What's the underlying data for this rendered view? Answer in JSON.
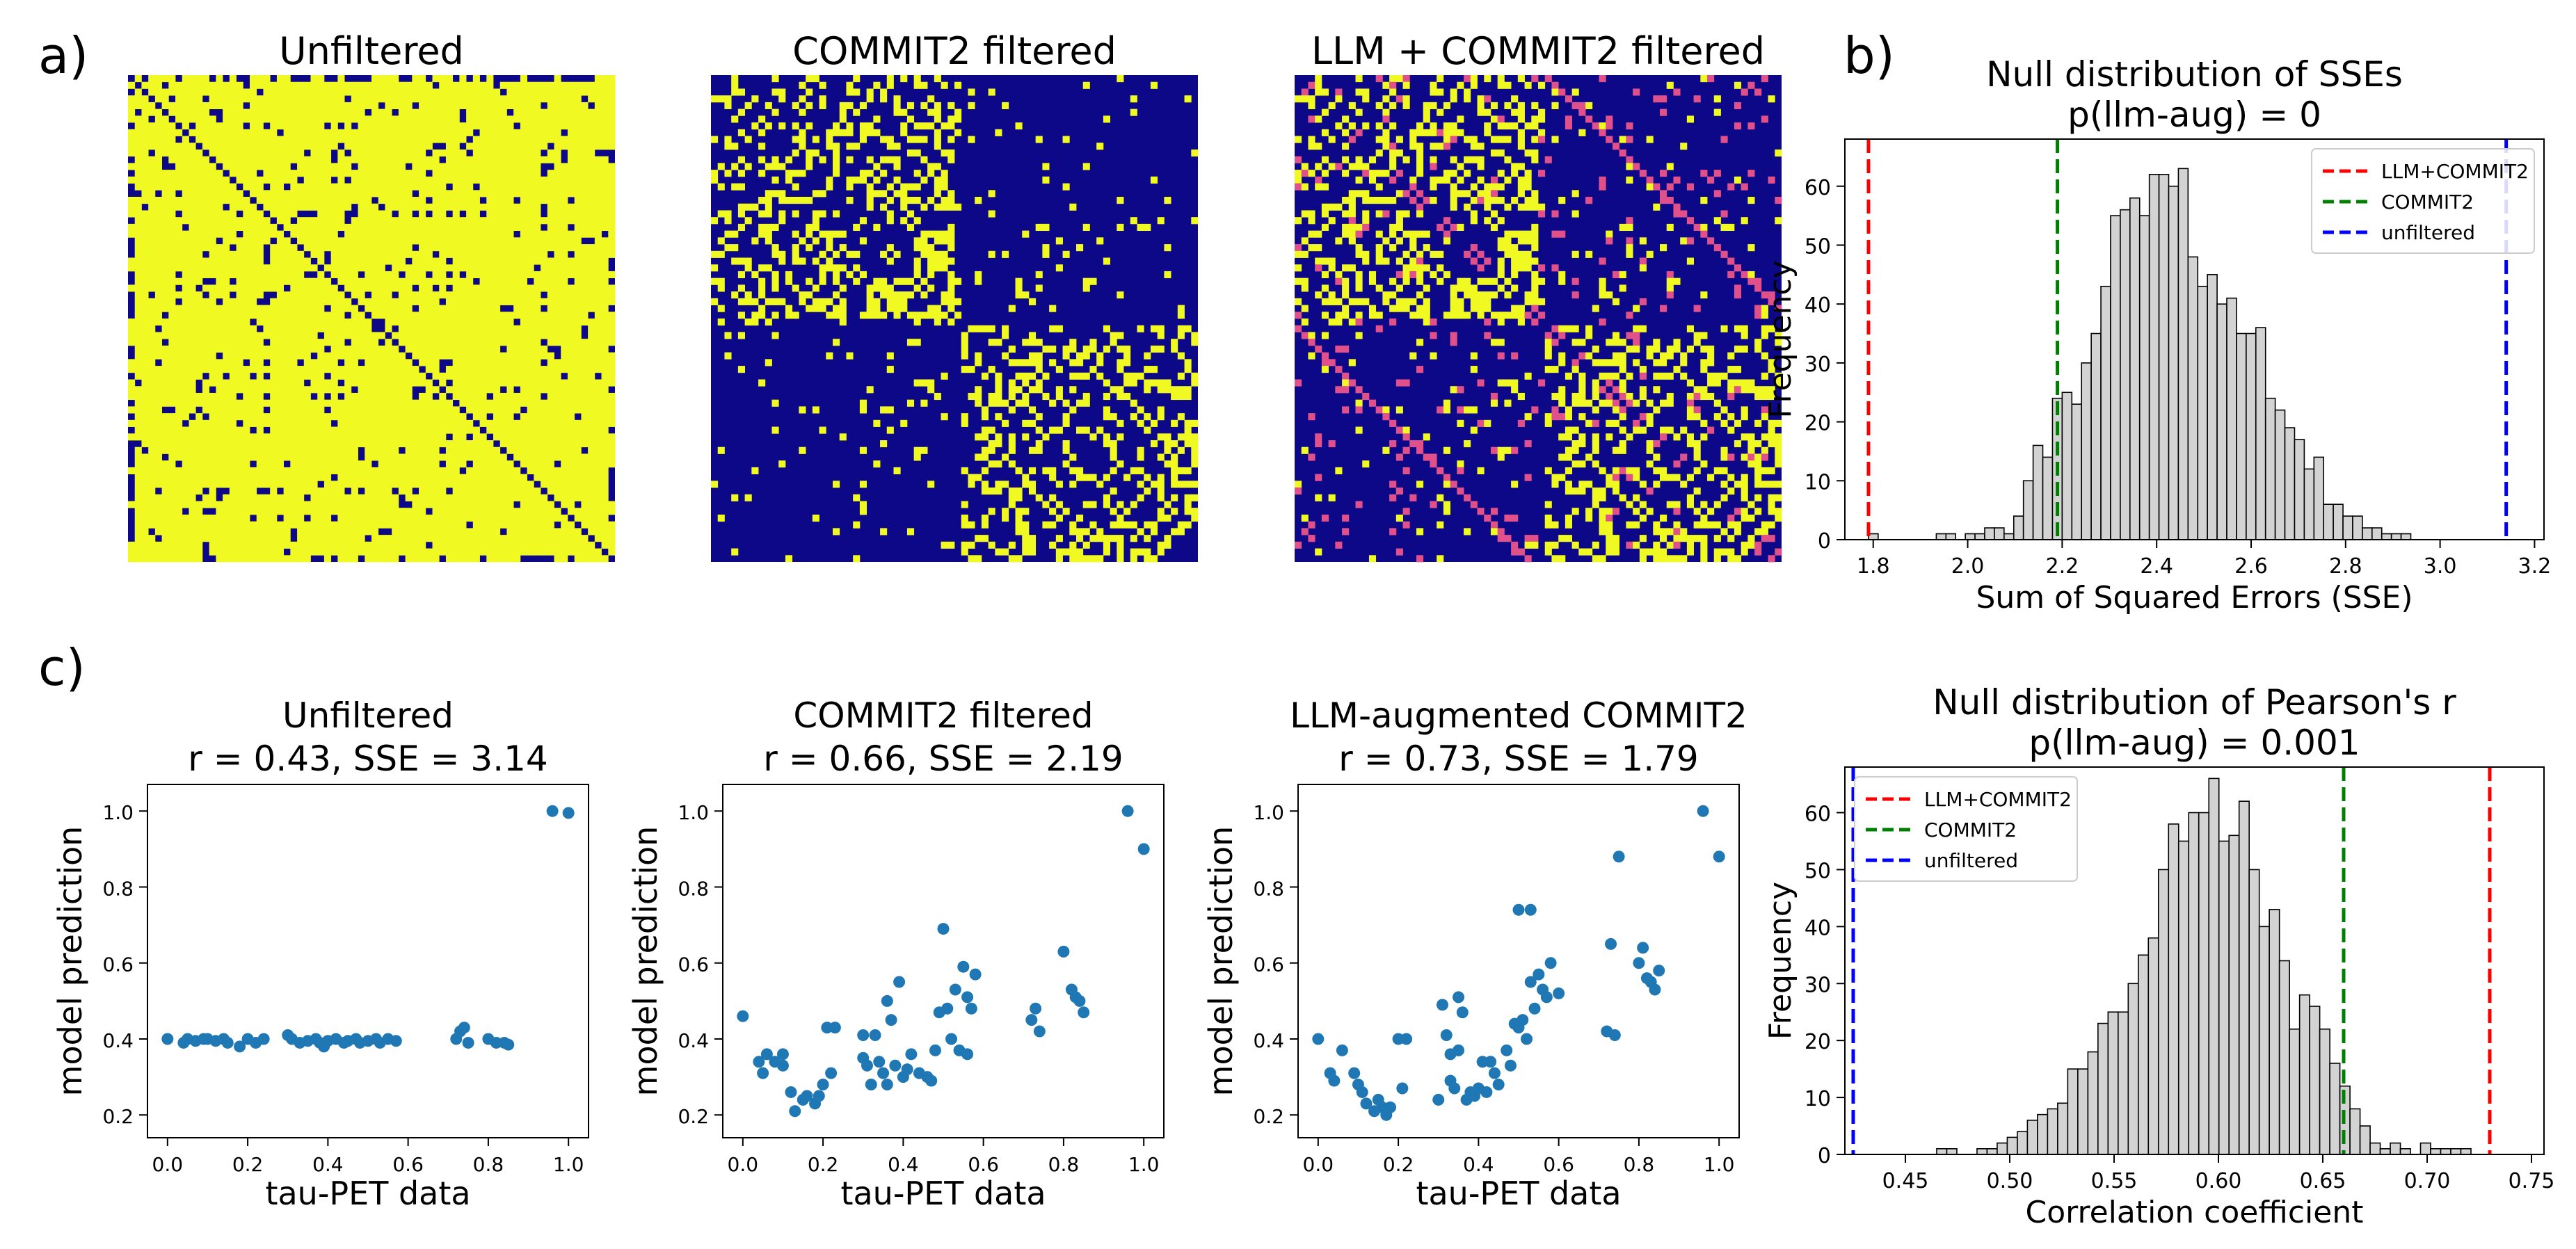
{
  "panel_labels": {
    "a": "a)",
    "b": "b)",
    "c": "c)"
  },
  "colors": {
    "navy": "#0d0887",
    "yellow": "#f0f921",
    "pink": "#e0508a",
    "scatter": "#1f77b4",
    "hist_fill": "#d3d3d3",
    "red": "#ff0000",
    "green": "#008000",
    "blue": "#0000ff"
  },
  "matrices": [
    {
      "title": "Unfiltered",
      "kind": "dense"
    },
    {
      "title": "COMMIT2 filtered",
      "kind": "sparse"
    },
    {
      "title": "LLM + COMMIT2 filtered",
      "kind": "sparse_llm"
    }
  ],
  "chart_data": [
    {
      "type": "histogram",
      "title_lines": [
        "Null distribution of SSEs",
        "p(llm-aug) = 0"
      ],
      "xlabel": "Sum of Squared Errors (SSE)",
      "ylabel": "Frequency",
      "xlim": [
        1.74,
        3.22
      ],
      "ylim": [
        0,
        68
      ],
      "xticks": [
        1.8,
        2.0,
        2.2,
        2.4,
        2.6,
        2.8,
        3.0,
        3.2
      ],
      "xtick_labels": [
        "1.8",
        "2.0",
        "2.2",
        "2.4",
        "2.6",
        "2.8",
        "3.0",
        "3.2"
      ],
      "yticks": [
        0,
        10,
        20,
        30,
        40,
        50,
        60
      ],
      "ytick_labels": [
        "0",
        "10",
        "20",
        "30",
        "40",
        "50",
        "60"
      ],
      "bin_start": 1.79,
      "bin_width": 0.0205,
      "counts": [
        1,
        0,
        0,
        0,
        0,
        0,
        0,
        1,
        1,
        0,
        1,
        1,
        2,
        2,
        1,
        4,
        10,
        16,
        14,
        24,
        25,
        23,
        30,
        35,
        43,
        55,
        56,
        58,
        55,
        62,
        62,
        60,
        63,
        48,
        43,
        45,
        40,
        41,
        35,
        35,
        36,
        24,
        22,
        19,
        17,
        12,
        14,
        6,
        6,
        4,
        4,
        2,
        2,
        1,
        1,
        1
      ],
      "vlines": [
        {
          "label": "LLM+COMMIT2",
          "x": 1.79,
          "color": "#ff0000"
        },
        {
          "label": "COMMIT2",
          "x": 2.19,
          "color": "#008000"
        },
        {
          "label": "unfiltered",
          "x": 3.14,
          "color": "#0000ff"
        }
      ],
      "legend": "top-right"
    },
    {
      "type": "histogram",
      "title_lines": [
        "Null distribution of Pearson's r",
        "p(llm-aug) = 0.001"
      ],
      "xlabel": "Correlation coefficient",
      "ylabel": "Frequency",
      "xlim": [
        0.421,
        0.756
      ],
      "ylim": [
        0,
        68
      ],
      "xticks": [
        0.45,
        0.5,
        0.55,
        0.6,
        0.65,
        0.7,
        0.75
      ],
      "xtick_labels": [
        "0.45",
        "0.50",
        "0.55",
        "0.60",
        "0.65",
        "0.70",
        "0.75"
      ],
      "yticks": [
        0,
        10,
        20,
        30,
        40,
        50,
        60
      ],
      "ytick_labels": [
        "0",
        "10",
        "20",
        "30",
        "40",
        "50",
        "60"
      ],
      "bin_start": 0.465,
      "bin_width": 0.00483,
      "counts": [
        1,
        1,
        0,
        0,
        1,
        1,
        2,
        3,
        4,
        6,
        7,
        8,
        9,
        15,
        15,
        18,
        23,
        25,
        25,
        30,
        35,
        38,
        50,
        58,
        55,
        60,
        60,
        66,
        55,
        56,
        62,
        50,
        40,
        43,
        34,
        22,
        28,
        26,
        22,
        16,
        12,
        8,
        5,
        2,
        1,
        2,
        1,
        0,
        2,
        1,
        1,
        1,
        1
      ],
      "vlines": [
        {
          "label": "LLM+COMMIT2",
          "x": 0.73,
          "color": "#ff0000"
        },
        {
          "label": "COMMIT2",
          "x": 0.66,
          "color": "#008000"
        },
        {
          "label": "unfiltered",
          "x": 0.425,
          "color": "#0000ff"
        }
      ],
      "legend": "top-left"
    },
    {
      "type": "scatter",
      "title_lines": [
        "Unfiltered",
        "r = 0.43, SSE = 3.14"
      ],
      "xlabel": "tau-PET data",
      "ylabel": "model prediction",
      "xlim": [
        -0.05,
        1.05
      ],
      "ylim": [
        0.14,
        1.07
      ],
      "xticks": [
        0.0,
        0.2,
        0.4,
        0.6,
        0.8,
        1.0
      ],
      "xtick_labels": [
        "0.0",
        "0.2",
        "0.4",
        "0.6",
        "0.8",
        "1.0"
      ],
      "yticks": [
        0.2,
        0.4,
        0.6,
        0.8,
        1.0
      ],
      "ytick_labels": [
        "0.2",
        "0.4",
        "0.6",
        "0.8",
        "1.0"
      ],
      "points": [
        [
          0.0,
          0.4
        ],
        [
          0.04,
          0.39
        ],
        [
          0.05,
          0.4
        ],
        [
          0.07,
          0.395
        ],
        [
          0.09,
          0.4
        ],
        [
          0.1,
          0.4
        ],
        [
          0.12,
          0.395
        ],
        [
          0.14,
          0.4
        ],
        [
          0.15,
          0.39
        ],
        [
          0.18,
          0.38
        ],
        [
          0.2,
          0.4
        ],
        [
          0.22,
          0.39
        ],
        [
          0.24,
          0.4
        ],
        [
          0.3,
          0.41
        ],
        [
          0.31,
          0.4
        ],
        [
          0.33,
          0.39
        ],
        [
          0.35,
          0.395
        ],
        [
          0.37,
          0.4
        ],
        [
          0.38,
          0.39
        ],
        [
          0.39,
          0.38
        ],
        [
          0.4,
          0.395
        ],
        [
          0.42,
          0.4
        ],
        [
          0.44,
          0.39
        ],
        [
          0.45,
          0.395
        ],
        [
          0.47,
          0.4
        ],
        [
          0.48,
          0.39
        ],
        [
          0.5,
          0.395
        ],
        [
          0.52,
          0.4
        ],
        [
          0.53,
          0.39
        ],
        [
          0.55,
          0.4
        ],
        [
          0.57,
          0.395
        ],
        [
          0.72,
          0.4
        ],
        [
          0.73,
          0.42
        ],
        [
          0.74,
          0.43
        ],
        [
          0.75,
          0.39
        ],
        [
          0.8,
          0.4
        ],
        [
          0.82,
          0.39
        ],
        [
          0.84,
          0.39
        ],
        [
          0.85,
          0.385
        ],
        [
          0.96,
          1.0
        ],
        [
          1.0,
          0.995
        ]
      ]
    },
    {
      "type": "scatter",
      "title_lines": [
        "COMMIT2 filtered",
        "r = 0.66, SSE = 2.19"
      ],
      "xlabel": "tau-PET data",
      "ylabel": "model prediction",
      "xlim": [
        -0.05,
        1.05
      ],
      "ylim": [
        0.14,
        1.07
      ],
      "xticks": [
        0.0,
        0.2,
        0.4,
        0.6,
        0.8,
        1.0
      ],
      "xtick_labels": [
        "0.0",
        "0.2",
        "0.4",
        "0.6",
        "0.8",
        "1.0"
      ],
      "yticks": [
        0.2,
        0.4,
        0.6,
        0.8,
        1.0
      ],
      "ytick_labels": [
        "0.2",
        "0.4",
        "0.6",
        "0.8",
        "1.0"
      ],
      "points": [
        [
          0.0,
          0.46
        ],
        [
          0.04,
          0.34
        ],
        [
          0.05,
          0.31
        ],
        [
          0.06,
          0.36
        ],
        [
          0.08,
          0.34
        ],
        [
          0.1,
          0.36
        ],
        [
          0.1,
          0.33
        ],
        [
          0.12,
          0.26
        ],
        [
          0.13,
          0.21
        ],
        [
          0.15,
          0.24
        ],
        [
          0.16,
          0.25
        ],
        [
          0.18,
          0.23
        ],
        [
          0.19,
          0.25
        ],
        [
          0.2,
          0.28
        ],
        [
          0.21,
          0.43
        ],
        [
          0.22,
          0.31
        ],
        [
          0.23,
          0.43
        ],
        [
          0.3,
          0.41
        ],
        [
          0.3,
          0.35
        ],
        [
          0.31,
          0.33
        ],
        [
          0.32,
          0.28
        ],
        [
          0.33,
          0.41
        ],
        [
          0.34,
          0.34
        ],
        [
          0.35,
          0.31
        ],
        [
          0.36,
          0.5
        ],
        [
          0.36,
          0.28
        ],
        [
          0.37,
          0.45
        ],
        [
          0.38,
          0.33
        ],
        [
          0.39,
          0.55
        ],
        [
          0.4,
          0.3
        ],
        [
          0.41,
          0.32
        ],
        [
          0.42,
          0.36
        ],
        [
          0.44,
          0.31
        ],
        [
          0.46,
          0.3
        ],
        [
          0.47,
          0.29
        ],
        [
          0.48,
          0.37
        ],
        [
          0.49,
          0.47
        ],
        [
          0.5,
          0.69
        ],
        [
          0.51,
          0.48
        ],
        [
          0.52,
          0.4
        ],
        [
          0.53,
          0.53
        ],
        [
          0.54,
          0.37
        ],
        [
          0.55,
          0.59
        ],
        [
          0.56,
          0.51
        ],
        [
          0.56,
          0.36
        ],
        [
          0.57,
          0.48
        ],
        [
          0.58,
          0.57
        ],
        [
          0.72,
          0.45
        ],
        [
          0.73,
          0.48
        ],
        [
          0.74,
          0.42
        ],
        [
          0.8,
          0.63
        ],
        [
          0.82,
          0.53
        ],
        [
          0.83,
          0.51
        ],
        [
          0.84,
          0.5
        ],
        [
          0.85,
          0.47
        ],
        [
          0.96,
          1.0
        ],
        [
          1.0,
          0.9
        ]
      ]
    },
    {
      "type": "scatter",
      "title_lines": [
        "LLM-augmented COMMIT2",
        "r = 0.73, SSE = 1.79"
      ],
      "xlabel": "tau-PET data",
      "ylabel": "model prediction",
      "xlim": [
        -0.05,
        1.05
      ],
      "ylim": [
        0.14,
        1.07
      ],
      "xticks": [
        0.0,
        0.2,
        0.4,
        0.6,
        0.8,
        1.0
      ],
      "xtick_labels": [
        "0.0",
        "0.2",
        "0.4",
        "0.6",
        "0.8",
        "1.0"
      ],
      "yticks": [
        0.2,
        0.4,
        0.6,
        0.8,
        1.0
      ],
      "ytick_labels": [
        "0.2",
        "0.4",
        "0.6",
        "0.8",
        "1.0"
      ],
      "points": [
        [
          0.0,
          0.4
        ],
        [
          0.03,
          0.31
        ],
        [
          0.04,
          0.29
        ],
        [
          0.06,
          0.37
        ],
        [
          0.09,
          0.31
        ],
        [
          0.1,
          0.28
        ],
        [
          0.11,
          0.26
        ],
        [
          0.12,
          0.23
        ],
        [
          0.14,
          0.21
        ],
        [
          0.15,
          0.24
        ],
        [
          0.16,
          0.22
        ],
        [
          0.17,
          0.2
        ],
        [
          0.18,
          0.22
        ],
        [
          0.2,
          0.4
        ],
        [
          0.21,
          0.27
        ],
        [
          0.22,
          0.4
        ],
        [
          0.3,
          0.24
        ],
        [
          0.31,
          0.49
        ],
        [
          0.32,
          0.41
        ],
        [
          0.33,
          0.29
        ],
        [
          0.33,
          0.36
        ],
        [
          0.34,
          0.27
        ],
        [
          0.35,
          0.51
        ],
        [
          0.35,
          0.37
        ],
        [
          0.36,
          0.47
        ],
        [
          0.37,
          0.24
        ],
        [
          0.38,
          0.26
        ],
        [
          0.39,
          0.25
        ],
        [
          0.4,
          0.27
        ],
        [
          0.41,
          0.34
        ],
        [
          0.42,
          0.26
        ],
        [
          0.43,
          0.34
        ],
        [
          0.44,
          0.31
        ],
        [
          0.45,
          0.28
        ],
        [
          0.47,
          0.37
        ],
        [
          0.48,
          0.33
        ],
        [
          0.49,
          0.44
        ],
        [
          0.5,
          0.74
        ],
        [
          0.5,
          0.43
        ],
        [
          0.51,
          0.45
        ],
        [
          0.52,
          0.4
        ],
        [
          0.53,
          0.74
        ],
        [
          0.53,
          0.55
        ],
        [
          0.54,
          0.48
        ],
        [
          0.55,
          0.57
        ],
        [
          0.56,
          0.53
        ],
        [
          0.57,
          0.51
        ],
        [
          0.58,
          0.6
        ],
        [
          0.6,
          0.52
        ],
        [
          0.72,
          0.42
        ],
        [
          0.73,
          0.65
        ],
        [
          0.74,
          0.41
        ],
        [
          0.75,
          0.88
        ],
        [
          0.8,
          0.6
        ],
        [
          0.81,
          0.64
        ],
        [
          0.82,
          0.56
        ],
        [
          0.83,
          0.55
        ],
        [
          0.84,
          0.53
        ],
        [
          0.85,
          0.58
        ],
        [
          0.96,
          1.0
        ],
        [
          1.0,
          0.88
        ]
      ]
    }
  ]
}
